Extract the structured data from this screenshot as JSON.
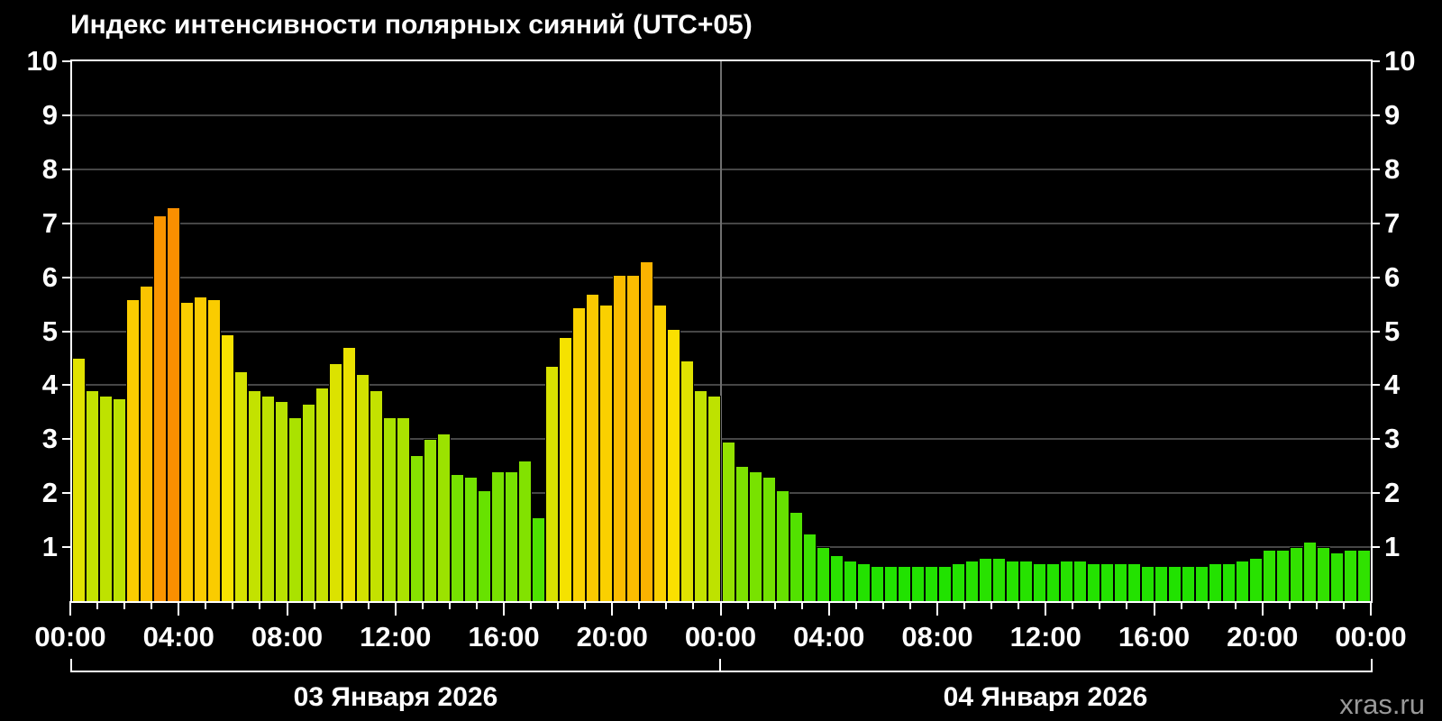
{
  "title": "Индекс интенсивности полярных сияний (UTC+05)",
  "watermark": "xras.ru",
  "colors": {
    "background": "#000000",
    "frame": "#ffffff",
    "grid": "#464646",
    "day_separator": "#6f6f6f",
    "text": "#ffffff",
    "watermark_text": "#999999",
    "bar_border": "#000000",
    "bar_low_green": "#2bdf00",
    "bar_mid_yellow": "#f8f000",
    "bar_gold": "#facd00",
    "bar_high_orange": "#fa8e00"
  },
  "chart_data": {
    "type": "bar",
    "title": "Индекс интенсивности полярных сияний (UTC+05)",
    "timezone": "UTC+05",
    "start": "03.01.2026 00:00",
    "step_minutes": 30,
    "hours_total": 48,
    "ylim": [
      0,
      10
    ],
    "grid": "horizontal-on",
    "ytick_labels": [
      "1",
      "2",
      "3",
      "4",
      "5",
      "6",
      "7",
      "8",
      "9",
      "10"
    ],
    "xtick_interval_hours": 1,
    "xtick_label_interval_hours": 4,
    "xtick_labels": [
      "00:00",
      "04:00",
      "08:00",
      "12:00",
      "16:00",
      "20:00",
      "00:00",
      "04:00",
      "08:00",
      "12:00",
      "16:00",
      "20:00",
      "00:00"
    ],
    "day_labels": [
      "03 Января 2026",
      "04 Января 2026"
    ],
    "values": [
      4.5,
      3.9,
      3.8,
      3.75,
      5.6,
      5.85,
      7.15,
      7.3,
      5.55,
      5.65,
      5.6,
      4.95,
      4.25,
      3.9,
      3.8,
      3.7,
      3.4,
      3.65,
      3.95,
      4.4,
      4.7,
      4.2,
      3.9,
      3.4,
      3.4,
      2.7,
      3.0,
      3.1,
      2.35,
      2.3,
      2.05,
      2.4,
      2.4,
      2.6,
      1.55,
      4.35,
      4.9,
      5.45,
      5.7,
      5.5,
      6.05,
      6.05,
      6.3,
      5.5,
      5.05,
      4.45,
      3.9,
      3.8,
      2.95,
      2.5,
      2.4,
      2.3,
      2.05,
      1.65,
      1.25,
      1.0,
      0.85,
      0.75,
      0.7,
      0.65,
      0.65,
      0.65,
      0.65,
      0.65,
      0.65,
      0.7,
      0.75,
      0.8,
      0.8,
      0.75,
      0.75,
      0.7,
      0.7,
      0.75,
      0.75,
      0.7,
      0.7,
      0.7,
      0.7,
      0.65,
      0.65,
      0.65,
      0.65,
      0.65,
      0.7,
      0.7,
      0.75,
      0.8,
      0.95,
      0.95,
      1.0,
      1.1,
      1.0,
      0.9,
      0.95,
      0.95
    ],
    "color_scale": {
      "model": "rgb-ramp",
      "description": "green at 0 to yellow at 5 to orange/red toward 10",
      "r_full_at_value": 5,
      "r_max": 250,
      "g_base": 226,
      "g_slope_above_5": 36,
      "b": 0
    }
  }
}
